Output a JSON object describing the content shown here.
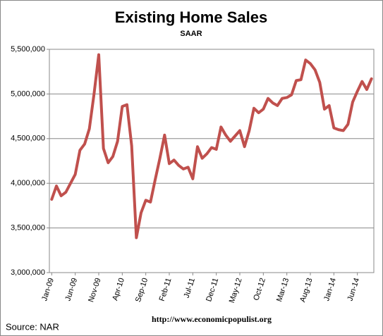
{
  "chart_data": {
    "type": "line",
    "title": "Existing Home Sales",
    "subtitle": "SAAR",
    "annotations": [
      "http://www.economicpopulist.org",
      "Source:  NAR"
    ],
    "categories": [
      "Jan-09",
      null,
      null,
      null,
      null,
      "Jun-09",
      null,
      null,
      null,
      null,
      "Nov-09",
      null,
      null,
      null,
      null,
      "Apr-10",
      null,
      null,
      null,
      null,
      "Sep-10",
      null,
      null,
      null,
      null,
      "Feb-11",
      null,
      null,
      null,
      null,
      "Jul-11",
      null,
      null,
      null,
      null,
      "Dec-11",
      null,
      null,
      null,
      null,
      "May-12",
      null,
      null,
      null,
      null,
      "Oct-12",
      null,
      null,
      null,
      null,
      "Mar-13",
      null,
      null,
      null,
      null,
      "Aug-13",
      null,
      null,
      null,
      null,
      "Jan-14",
      null,
      null,
      null,
      null,
      "Jun-14",
      null,
      null,
      null
    ],
    "series": [
      {
        "name": "Existing Home Sales",
        "color": "#c0504d",
        "values": [
          3820000,
          3970000,
          3860000,
          3900000,
          4000000,
          4100000,
          4370000,
          4440000,
          4610000,
          5000000,
          5440000,
          4390000,
          4230000,
          4300000,
          4470000,
          4860000,
          4880000,
          4420000,
          3390000,
          3670000,
          3810000,
          3790000,
          4040000,
          4280000,
          4540000,
          4220000,
          4260000,
          4200000,
          4160000,
          4180000,
          4050000,
          4410000,
          4280000,
          4330000,
          4400000,
          4380000,
          4630000,
          4540000,
          4470000,
          4530000,
          4590000,
          4410000,
          4590000,
          4840000,
          4790000,
          4830000,
          4950000,
          4900000,
          4870000,
          4950000,
          4960000,
          4990000,
          5150000,
          5160000,
          5380000,
          5340000,
          5270000,
          5130000,
          4830000,
          4870000,
          4620000,
          4600000,
          4590000,
          4660000,
          4910000,
          5030000,
          5140000,
          5050000,
          5170000
        ]
      }
    ],
    "ylim": [
      3000000,
      5500000
    ],
    "yticks": [
      {
        "value": 3000000,
        "label": "3,000,000"
      },
      {
        "value": 3500000,
        "label": "3,500,000"
      },
      {
        "value": 4000000,
        "label": "4,000,000"
      },
      {
        "value": 4500000,
        "label": "4,500,000"
      },
      {
        "value": 5000000,
        "label": "5,000,000"
      },
      {
        "value": 5500000,
        "label": "5,500,000"
      }
    ],
    "grid": true
  }
}
